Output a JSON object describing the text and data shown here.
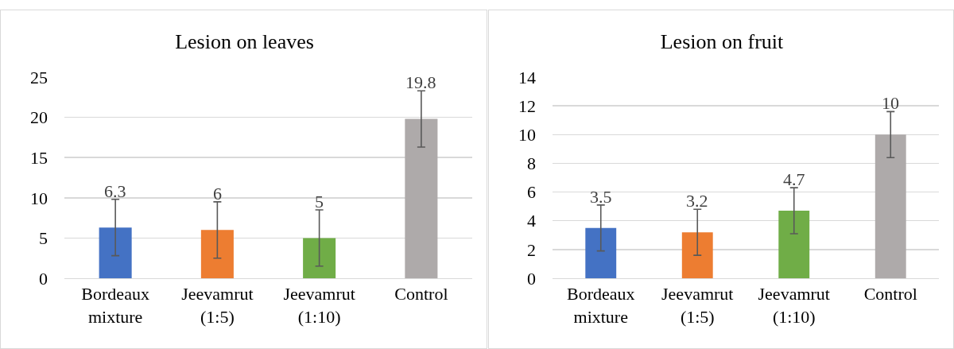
{
  "chart_data": [
    {
      "type": "bar",
      "title": "Lesion on leaves",
      "categories": [
        "Bordeaux\nmixture",
        "Jeevamrut\n(1:5)",
        "Jeevamrut\n(1:10)",
        "Control"
      ],
      "values": [
        6.3,
        6,
        5,
        19.8
      ],
      "colors": [
        "#4472c4",
        "#ed7d31",
        "#70ad47",
        "#aeaaaa"
      ],
      "errors": [
        3.5,
        3.5,
        3.5,
        3.5
      ],
      "ylim": [
        0,
        25
      ],
      "yticks": [
        0,
        5,
        10,
        15,
        20,
        25
      ],
      "grid": "y",
      "data_labels": true
    },
    {
      "type": "bar",
      "title": "Lesion on fruit",
      "categories": [
        "Bordeaux\nmixture",
        "Jeevamrut\n(1:5)",
        "Jeevamrut\n(1:10)",
        "Control"
      ],
      "values": [
        3.5,
        3.2,
        4.7,
        10
      ],
      "colors": [
        "#4472c4",
        "#ed7d31",
        "#70ad47",
        "#aeaaaa"
      ],
      "errors": [
        1.6,
        1.6,
        1.6,
        1.6
      ],
      "ylim": [
        0,
        14
      ],
      "yticks": [
        0,
        2,
        4,
        6,
        8,
        10,
        12,
        14
      ],
      "grid": "y",
      "data_labels": true
    }
  ]
}
